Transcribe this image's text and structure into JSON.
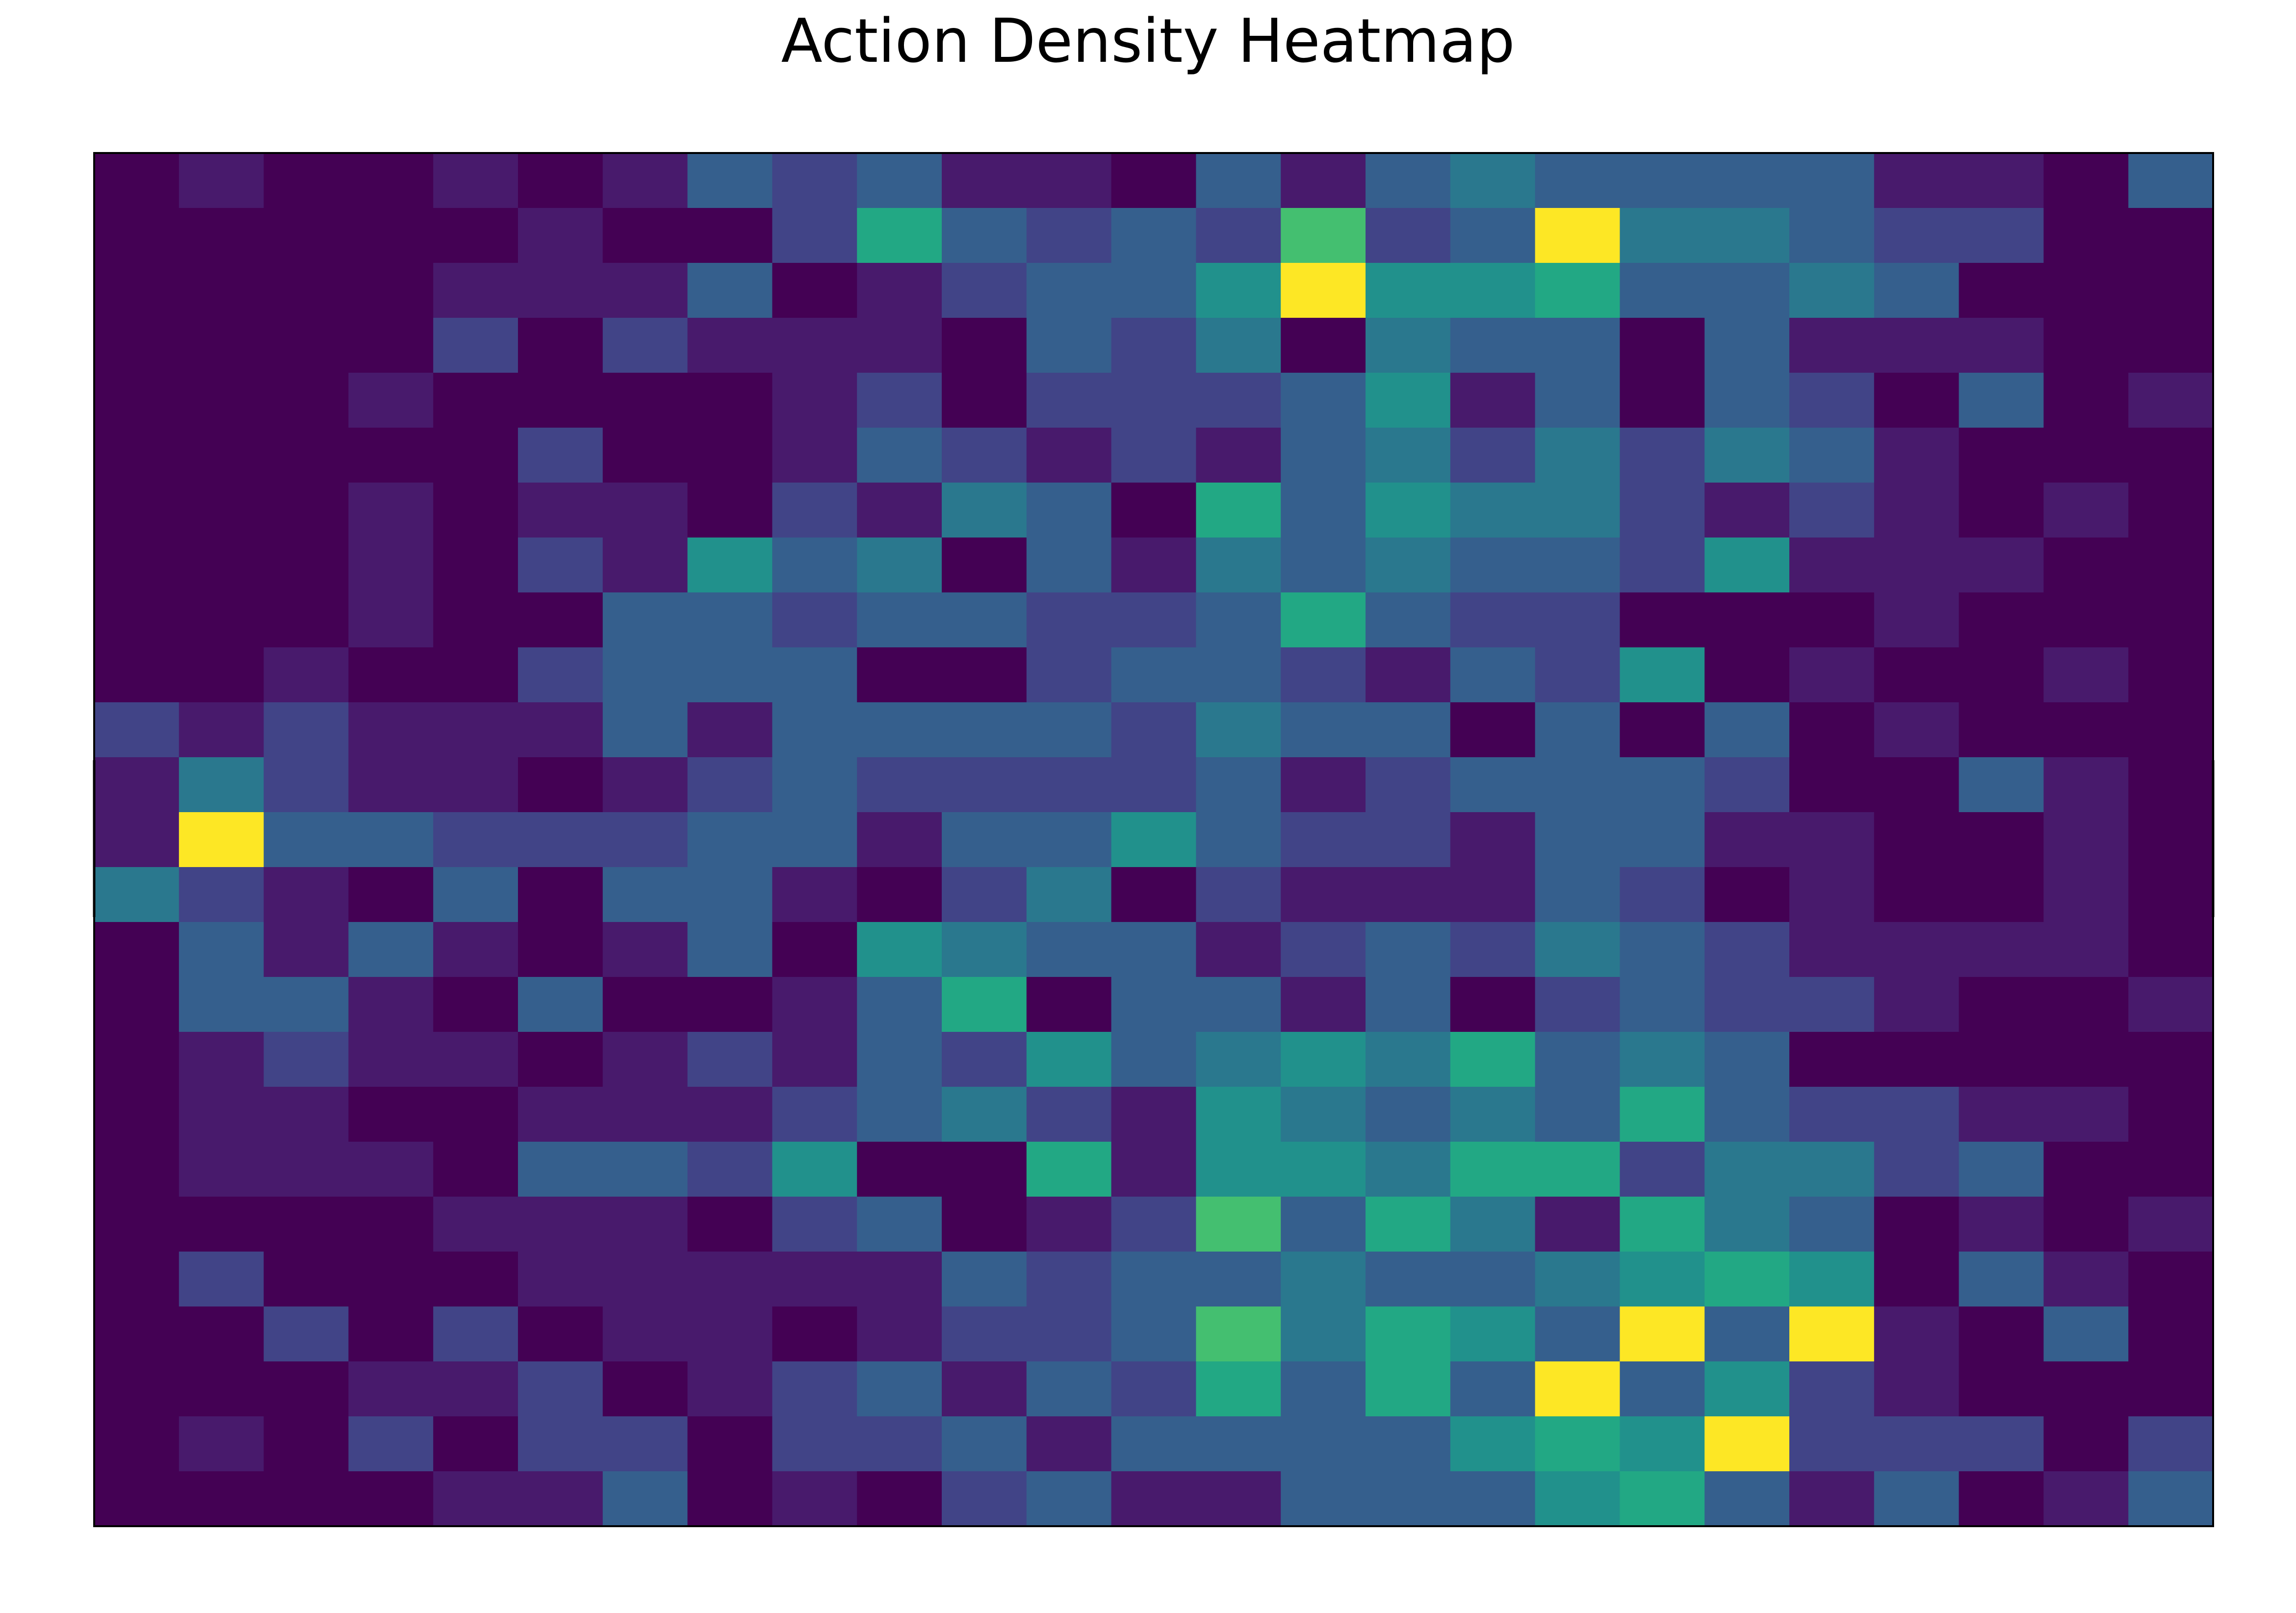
{
  "chart_data": {
    "type": "heatmap",
    "title": "Action Density Heatmap",
    "xlabel": "",
    "ylabel": "",
    "rows": 25,
    "cols": 25,
    "grid": false,
    "axis_ticks": false,
    "colormap": "viridis",
    "color_scale_max": 8,
    "values": [
      [
        0,
        1,
        0,
        0,
        1,
        0,
        1,
        3,
        2,
        3,
        1,
        1,
        0,
        3,
        1,
        3,
        4,
        3,
        3,
        3,
        3,
        1,
        1,
        0,
        3
      ],
      [
        0,
        0,
        0,
        0,
        0,
        1,
        0,
        0,
        2,
        6,
        3,
        2,
        3,
        2,
        7,
        2,
        3,
        8,
        4,
        4,
        3,
        2,
        2,
        0,
        0
      ],
      [
        0,
        0,
        0,
        0,
        1,
        1,
        1,
        3,
        0,
        1,
        2,
        3,
        3,
        5,
        8,
        5,
        5,
        6,
        3,
        3,
        4,
        3,
        0,
        0,
        0
      ],
      [
        0,
        0,
        0,
        0,
        2,
        0,
        2,
        1,
        1,
        1,
        0,
        3,
        2,
        4,
        0,
        4,
        3,
        3,
        0,
        3,
        1,
        1,
        1,
        0,
        0
      ],
      [
        0,
        0,
        0,
        1,
        0,
        0,
        0,
        0,
        1,
        2,
        0,
        2,
        2,
        2,
        3,
        5,
        1,
        3,
        0,
        3,
        2,
        0,
        3,
        0,
        1
      ],
      [
        0,
        0,
        0,
        0,
        0,
        2,
        0,
        0,
        1,
        3,
        2,
        1,
        2,
        1,
        3,
        4,
        2,
        4,
        2,
        4,
        3,
        1,
        0,
        0,
        0
      ],
      [
        0,
        0,
        0,
        1,
        0,
        1,
        1,
        0,
        2,
        1,
        4,
        3,
        0,
        6,
        3,
        5,
        4,
        4,
        2,
        1,
        2,
        1,
        0,
        1,
        0
      ],
      [
        0,
        0,
        0,
        1,
        0,
        2,
        1,
        5,
        3,
        4,
        0,
        3,
        1,
        4,
        3,
        4,
        3,
        3,
        2,
        5,
        1,
        1,
        1,
        0,
        0
      ],
      [
        0,
        0,
        0,
        1,
        0,
        0,
        3,
        3,
        2,
        3,
        3,
        2,
        2,
        3,
        6,
        3,
        2,
        2,
        0,
        0,
        0,
        1,
        0,
        0,
        0
      ],
      [
        0,
        0,
        1,
        0,
        0,
        2,
        3,
        3,
        3,
        0,
        0,
        2,
        3,
        3,
        2,
        1,
        3,
        2,
        5,
        0,
        1,
        0,
        0,
        1,
        0
      ],
      [
        2,
        1,
        2,
        1,
        1,
        1,
        3,
        1,
        3,
        3,
        3,
        3,
        2,
        4,
        3,
        3,
        0,
        3,
        0,
        3,
        0,
        1,
        0,
        0,
        0
      ],
      [
        1,
        4,
        2,
        1,
        1,
        0,
        1,
        2,
        3,
        2,
        2,
        2,
        2,
        3,
        1,
        2,
        3,
        3,
        3,
        2,
        0,
        0,
        3,
        1,
        0
      ],
      [
        1,
        8,
        3,
        3,
        2,
        2,
        2,
        3,
        3,
        1,
        3,
        3,
        5,
        3,
        2,
        2,
        1,
        3,
        3,
        1,
        1,
        0,
        0,
        1,
        0
      ],
      [
        4,
        2,
        1,
        0,
        3,
        0,
        3,
        3,
        1,
        0,
        2,
        4,
        0,
        2,
        1,
        1,
        1,
        3,
        2,
        0,
        1,
        0,
        0,
        1,
        0
      ],
      [
        0,
        3,
        1,
        3,
        1,
        0,
        1,
        3,
        0,
        5,
        4,
        3,
        3,
        1,
        2,
        3,
        2,
        4,
        3,
        2,
        1,
        1,
        1,
        1,
        0
      ],
      [
        0,
        3,
        3,
        1,
        0,
        3,
        0,
        0,
        1,
        3,
        6,
        0,
        3,
        3,
        1,
        3,
        0,
        2,
        3,
        2,
        2,
        1,
        0,
        0,
        1
      ],
      [
        0,
        1,
        2,
        1,
        1,
        0,
        1,
        2,
        1,
        3,
        2,
        5,
        3,
        4,
        5,
        4,
        6,
        3,
        4,
        3,
        0,
        0,
        0,
        0,
        0
      ],
      [
        0,
        1,
        1,
        0,
        0,
        1,
        1,
        1,
        2,
        3,
        4,
        2,
        1,
        5,
        4,
        3,
        4,
        3,
        6,
        3,
        2,
        2,
        1,
        1,
        0
      ],
      [
        0,
        1,
        1,
        1,
        0,
        3,
        3,
        2,
        5,
        0,
        0,
        6,
        1,
        5,
        5,
        4,
        6,
        6,
        2,
        4,
        4,
        2,
        3,
        0,
        0
      ],
      [
        0,
        0,
        0,
        0,
        1,
        1,
        1,
        0,
        2,
        3,
        0,
        1,
        2,
        7,
        3,
        6,
        4,
        1,
        6,
        4,
        3,
        0,
        1,
        0,
        1
      ],
      [
        0,
        2,
        0,
        0,
        0,
        1,
        1,
        1,
        1,
        1,
        3,
        2,
        3,
        3,
        4,
        3,
        3,
        4,
        5,
        6,
        5,
        0,
        3,
        1,
        0
      ],
      [
        0,
        0,
        2,
        0,
        2,
        0,
        1,
        1,
        0,
        1,
        2,
        2,
        3,
        7,
        4,
        6,
        5,
        3,
        8,
        3,
        8,
        1,
        0,
        3,
        0
      ],
      [
        0,
        0,
        0,
        1,
        1,
        2,
        0,
        1,
        2,
        3,
        1,
        3,
        2,
        6,
        3,
        6,
        3,
        8,
        3,
        5,
        2,
        1,
        0,
        0,
        0
      ],
      [
        0,
        1,
        0,
        2,
        0,
        2,
        2,
        0,
        2,
        2,
        3,
        1,
        3,
        3,
        3,
        3,
        5,
        6,
        5,
        8,
        2,
        2,
        2,
        0,
        2
      ],
      [
        0,
        0,
        0,
        0,
        1,
        1,
        3,
        0,
        1,
        0,
        2,
        3,
        1,
        1,
        3,
        3,
        3,
        5,
        6,
        3,
        1,
        3,
        0,
        1,
        3
      ]
    ]
  }
}
